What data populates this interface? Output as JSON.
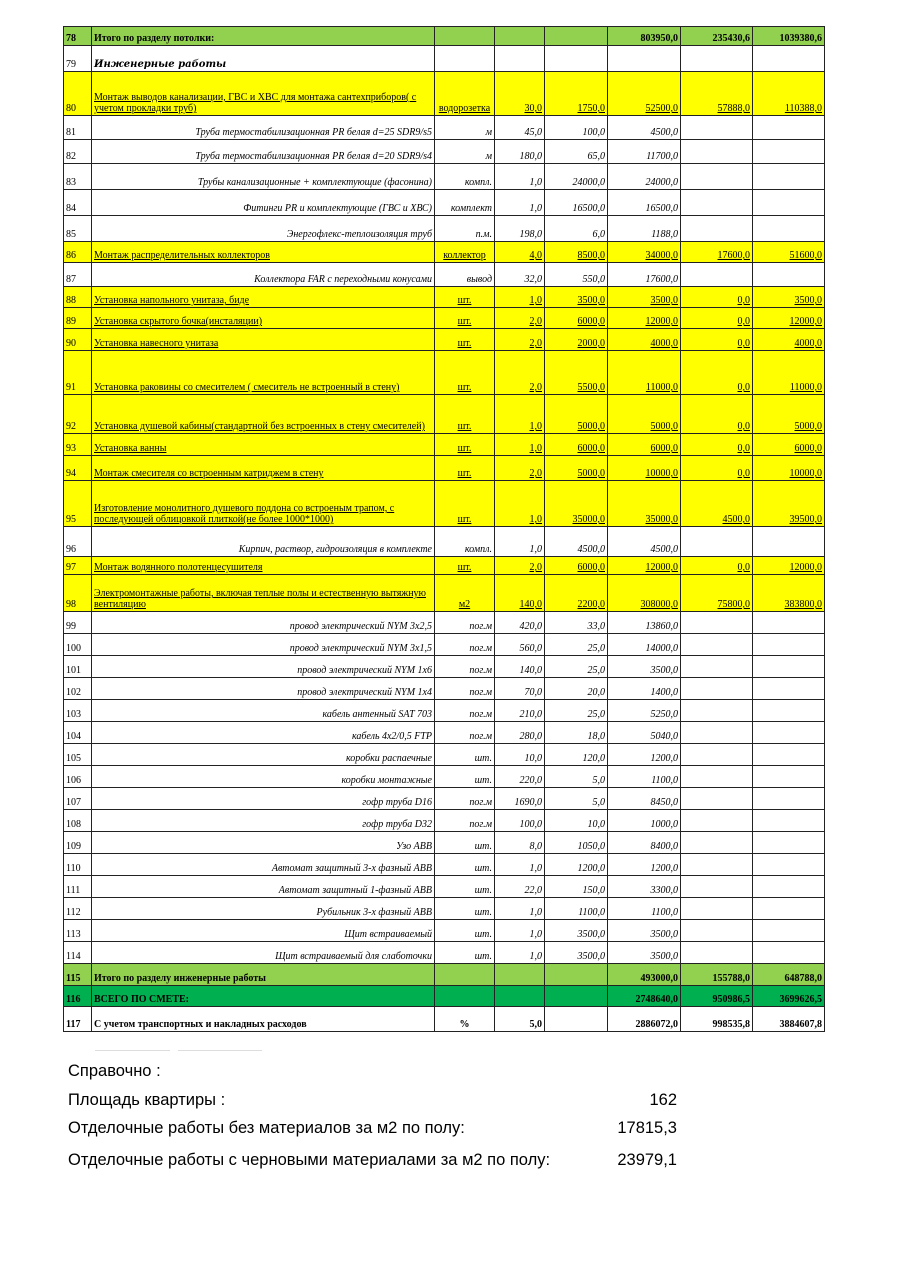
{
  "colors": {
    "work": "#ffff00",
    "section_total": "#92d050",
    "grand_total": "#00b050"
  },
  "rows": [
    {
      "n": "78",
      "name": "Итого по разделу потолки:",
      "unit": "",
      "qty": "",
      "price": "",
      "sum": "803950,0",
      "mat": "235430,6",
      "total": "1039380,6",
      "style": "total"
    },
    {
      "n": "79",
      "name": "Инженерные работы",
      "unit": "",
      "qty": "",
      "price": "",
      "sum": "",
      "mat": "",
      "total": "",
      "style": "section"
    },
    {
      "n": "80",
      "name": "Монтаж  выводов канализации, ГВС и ХВС  для монтажа сантехприборов( с учетом прокладки труб)",
      "unit": "водорозетка",
      "qty": "30,0",
      "price": "1750,0",
      "sum": "52500,0",
      "mat": "57888,0",
      "total": "110388,0",
      "style": "work"
    },
    {
      "n": "81",
      "name": "Труба термостабилизационная PR белая d=25 SDR9/s5",
      "unit": "м",
      "qty": "45,0",
      "price": "100,0",
      "sum": "4500,0",
      "mat": "",
      "total": "",
      "style": "item"
    },
    {
      "n": "82",
      "name": "Труба термостабилизационная PR белая d=20 SDR9/s4",
      "unit": "м",
      "qty": "180,0",
      "price": "65,0",
      "sum": "11700,0",
      "mat": "",
      "total": "",
      "style": "item"
    },
    {
      "n": "83",
      "name": "Трубы канализационные + комплектующие (фасонина)",
      "unit": "компл.",
      "qty": "1,0",
      "price": "24000,0",
      "sum": "24000,0",
      "mat": "",
      "total": "",
      "style": "item"
    },
    {
      "n": "84",
      "name": "Фитинги PR и комплектующие (ГВС и ХВС)",
      "unit": "комплект",
      "qty": "1,0",
      "price": "16500,0",
      "sum": "16500,0",
      "mat": "",
      "total": "",
      "style": "item"
    },
    {
      "n": "85",
      "name": "Энергофлекс-теплоизоляция труб",
      "unit": "п.м.",
      "qty": "198,0",
      "price": "6,0",
      "sum": "1188,0",
      "mat": "",
      "total": "",
      "style": "item"
    },
    {
      "n": "86",
      "name": "Монтаж  распределительных коллекторов",
      "unit": "коллектор",
      "qty": "4,0",
      "price": "8500,0",
      "sum": "34000,0",
      "mat": "17600,0",
      "total": "51600,0",
      "style": "work"
    },
    {
      "n": "87",
      "name": "Коллектора FAR с переходными конусами",
      "unit": "вывод",
      "qty": "32,0",
      "price": "550,0",
      "sum": "17600,0",
      "mat": "",
      "total": "",
      "style": "item"
    },
    {
      "n": "88",
      "name": "Установка напольного унитаза, биде",
      "unit": "шт.",
      "qty": "1,0",
      "price": "3500,0",
      "sum": "3500,0",
      "mat": "0,0",
      "total": "3500,0",
      "style": "work"
    },
    {
      "n": "89",
      "name": "Установка скрытого бочка(инсталяции)",
      "unit": "шт.",
      "qty": "2,0",
      "price": "6000,0",
      "sum": "12000,0",
      "mat": "0,0",
      "total": "12000,0",
      "style": "work"
    },
    {
      "n": "90",
      "name": "Установка навесного унитаза",
      "unit": "шт.",
      "qty": "2,0",
      "price": "2000,0",
      "sum": "4000,0",
      "mat": "0,0",
      "total": "4000,0",
      "style": "work"
    },
    {
      "n": "91",
      "name": "Установка раковины со смесителем ( смеситель не встроенный в стену)",
      "unit": "шт.",
      "qty": "2,0",
      "price": "5500,0",
      "sum": "11000,0",
      "mat": "0,0",
      "total": "11000,0",
      "style": "work"
    },
    {
      "n": "92",
      "name": "Установка душевой кабины(стандартной без встроенных в стену смесителей)",
      "unit": "шт.",
      "qty": "1,0",
      "price": "5000,0",
      "sum": "5000,0",
      "mat": "0,0",
      "total": "5000,0",
      "style": "work"
    },
    {
      "n": "93",
      "name": "Установка ванны",
      "unit": "шт.",
      "qty": "1,0",
      "price": "6000,0",
      "sum": "6000,0",
      "mat": "0,0",
      "total": "6000,0",
      "style": "work"
    },
    {
      "n": "94",
      "name": "Монтаж смесителя со встроенным катриджем в стену",
      "unit": "шт.",
      "qty": "2,0",
      "price": "5000,0",
      "sum": "10000,0",
      "mat": "0,0",
      "total": "10000,0",
      "style": "work"
    },
    {
      "n": "95",
      "name": "Изготовление монолитного душевого поддона со встроеным трапом, с последующей облицовкой плиткой(не более 1000*1000)",
      "unit": "шт.",
      "qty": "1,0",
      "price": "35000,0",
      "sum": "35000,0",
      "mat": "4500,0",
      "total": "39500,0",
      "style": "work"
    },
    {
      "n": "96",
      "name": "Кирпич, раствор, гидроизоляция в комплекте",
      "unit": "компл.",
      "qty": "1,0",
      "price": "4500,0",
      "sum": "4500,0",
      "mat": "",
      "total": "",
      "style": "item"
    },
    {
      "n": "97",
      "name": "Монтаж водянного полотенцесушителя",
      "unit": "шт.",
      "qty": "2,0",
      "price": "6000,0",
      "sum": "12000,0",
      "mat": "0,0",
      "total": "12000,0",
      "style": "work"
    },
    {
      "n": "98",
      "name": "Электромонтажные работы, включая теплые полы и естественную вытяжную вентиляцию",
      "unit": "м2",
      "qty": "140,0",
      "price": "2200,0",
      "sum": "308000,0",
      "mat": "75800,0",
      "total": "383800,0",
      "style": "work"
    },
    {
      "n": "99",
      "name": "провод электрический NYM 3x2,5",
      "unit": "пог.м",
      "qty": "420,0",
      "price": "33,0",
      "sum": "13860,0",
      "mat": "",
      "total": "",
      "style": "item"
    },
    {
      "n": "100",
      "name": "провод электрический NYM 3x1,5",
      "unit": "пог.м",
      "qty": "560,0",
      "price": "25,0",
      "sum": "14000,0",
      "mat": "",
      "total": "",
      "style": "item"
    },
    {
      "n": "101",
      "name": "провод электрический NYM 1x6",
      "unit": "пог.м",
      "qty": "140,0",
      "price": "25,0",
      "sum": "3500,0",
      "mat": "",
      "total": "",
      "style": "item"
    },
    {
      "n": "102",
      "name": "провод электрический NYM 1x4",
      "unit": "пог.м",
      "qty": "70,0",
      "price": "20,0",
      "sum": "1400,0",
      "mat": "",
      "total": "",
      "style": "item"
    },
    {
      "n": "103",
      "name": "кабель антенный SAT 703",
      "unit": "пог.м",
      "qty": "210,0",
      "price": "25,0",
      "sum": "5250,0",
      "mat": "",
      "total": "",
      "style": "item"
    },
    {
      "n": "104",
      "name": "кабель 4x2/0,5 FTP",
      "unit": "пог.м",
      "qty": "280,0",
      "price": "18,0",
      "sum": "5040,0",
      "mat": "",
      "total": "",
      "style": "item"
    },
    {
      "n": "105",
      "name": "коробки распаечные",
      "unit": "шт.",
      "qty": "10,0",
      "price": "120,0",
      "sum": "1200,0",
      "mat": "",
      "total": "",
      "style": "item"
    },
    {
      "n": "106",
      "name": "коробки монтажные",
      "unit": "шт.",
      "qty": "220,0",
      "price": "5,0",
      "sum": "1100,0",
      "mat": "",
      "total": "",
      "style": "item"
    },
    {
      "n": "107",
      "name": "гофр труба D16",
      "unit": "пог.м",
      "qty": "1690,0",
      "price": "5,0",
      "sum": "8450,0",
      "mat": "",
      "total": "",
      "style": "item"
    },
    {
      "n": "108",
      "name": "гофр труба D32",
      "unit": "пог.м",
      "qty": "100,0",
      "price": "10,0",
      "sum": "1000,0",
      "mat": "",
      "total": "",
      "style": "item"
    },
    {
      "n": "109",
      "name": "Узо ABB",
      "unit": "шт.",
      "qty": "8,0",
      "price": "1050,0",
      "sum": "8400,0",
      "mat": "",
      "total": "",
      "style": "item"
    },
    {
      "n": "110",
      "name": "Автомат защитный 3-х фазный ABB",
      "unit": "шт.",
      "qty": "1,0",
      "price": "1200,0",
      "sum": "1200,0",
      "mat": "",
      "total": "",
      "style": "item"
    },
    {
      "n": "111",
      "name": "Автомат защитный 1-фазный ABB",
      "unit": "шт.",
      "qty": "22,0",
      "price": "150,0",
      "sum": "3300,0",
      "mat": "",
      "total": "",
      "style": "item"
    },
    {
      "n": "112",
      "name": "Рубильник 3-х фазный ABB",
      "unit": "шт.",
      "qty": "1,0",
      "price": "1100,0",
      "sum": "1100,0",
      "mat": "",
      "total": "",
      "style": "item"
    },
    {
      "n": "113",
      "name": "Щит  встраиваемый",
      "unit": "шт.",
      "qty": "1,0",
      "price": "3500,0",
      "sum": "3500,0",
      "mat": "",
      "total": "",
      "style": "item"
    },
    {
      "n": "114",
      "name": "Щит  встраиваемый для слаботочки",
      "unit": "шт.",
      "qty": "1,0",
      "price": "3500,0",
      "sum": "3500,0",
      "mat": "",
      "total": "",
      "style": "item"
    },
    {
      "n": "115",
      "name": "Итого по разделу инженерные работы",
      "unit": "",
      "qty": "",
      "price": "",
      "sum": "493000,0",
      "mat": "155788,0",
      "total": "648788,0",
      "style": "total"
    },
    {
      "n": "116",
      "name": "ВСЕГО ПО СМЕТЕ:",
      "unit": "",
      "qty": "",
      "price": "",
      "sum": "2748640,0",
      "mat": "950986,5",
      "total": "3699626,5",
      "style": "grand"
    },
    {
      "n": "117",
      "name": "С учетом транспортных и накладных расходов",
      "unit": "%",
      "qty": "5,0",
      "price": "",
      "sum": "2886072,0",
      "mat": "998535,8",
      "total": "3884607,8",
      "style": "final"
    }
  ],
  "reference": {
    "title": "Справочно :",
    "items": [
      {
        "label": "Площадь квартиры :",
        "value": "162"
      },
      {
        "label": "Отделочные работы без материалов  за м2 по полу:",
        "value": "17815,3"
      },
      {
        "label": "Отделочные работы с черновыми материалами  за м2 по полу:",
        "value": "23979,1"
      }
    ]
  }
}
